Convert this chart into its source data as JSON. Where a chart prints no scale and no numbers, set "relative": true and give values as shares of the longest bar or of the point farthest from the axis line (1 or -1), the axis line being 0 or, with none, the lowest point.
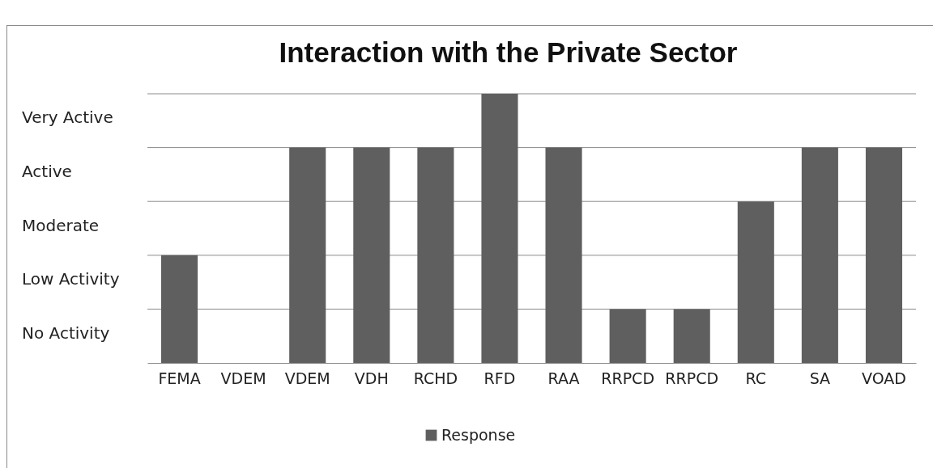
{
  "chart_data": {
    "type": "bar",
    "title": "Interaction with the Private Sector",
    "categories": [
      "FEMA",
      "VDEM",
      "VDEM",
      "VDH",
      "RCHD",
      "RFD",
      "RAA",
      "RRPCD",
      "RRPCD",
      "RC",
      "SA",
      "VOAD"
    ],
    "series": [
      {
        "name": "Response",
        "color": "#5f5f5f",
        "values": [
          0.4,
          0,
          0.8,
          0.8,
          0.8,
          1,
          0.8,
          0.2,
          0.2,
          0.6,
          0.8,
          0.8
        ]
      }
    ],
    "relative": true,
    "ref_lines": [
      {
        "axis": "y",
        "value": 0.2,
        "color": "#8a8a8a"
      },
      {
        "axis": "y",
        "value": 0.4,
        "color": "#8a8a8a"
      },
      {
        "axis": "y",
        "value": 0.6,
        "color": "#8a8a8a"
      },
      {
        "axis": "y",
        "value": 0.8,
        "color": "#8a8a8a"
      },
      {
        "axis": "y",
        "value": 1,
        "color": "#8a8a8a"
      }
    ],
    "annotations": [
      "No Activity",
      "Low Activity",
      "Moderate",
      "Active",
      "Very Active"
    ],
    "legend": "bottom"
  }
}
